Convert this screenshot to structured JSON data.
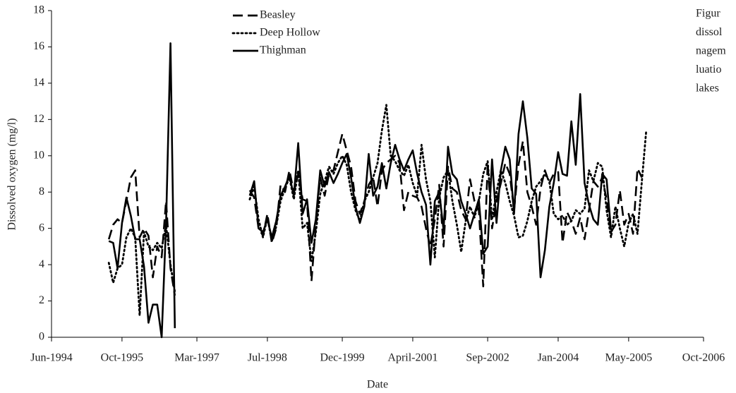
{
  "chart_data": {
    "type": "line",
    "x_label": "Date",
    "y_label": "Dissolved oxygen (mg/l)",
    "caption_fragments": [
      "Figur",
      "dissol",
      "nagem",
      "luatio",
      "lakes"
    ],
    "legend": "top-center",
    "xlim": [
      "1994-06",
      "2006-10"
    ],
    "xticks": [
      {
        "value": "1994-06",
        "label": "Jun-1994"
      },
      {
        "value": "1995-10",
        "label": "Oct-1995"
      },
      {
        "value": "1997-03",
        "label": "Mar-1997"
      },
      {
        "value": "1998-07",
        "label": "Jul-1998"
      },
      {
        "value": "1999-12",
        "label": "Dec-1999"
      },
      {
        "value": "2001-04",
        "label": "April-2001"
      },
      {
        "value": "2002-09",
        "label": "Sep-2002"
      },
      {
        "value": "2004-01",
        "label": "Jan-2004"
      },
      {
        "value": "2005-05",
        "label": "May-2005"
      },
      {
        "value": "2006-10",
        "label": "Oct-2006"
      }
    ],
    "ylim": [
      0,
      18
    ],
    "yticks": [
      0,
      2,
      4,
      6,
      8,
      10,
      12,
      14,
      16,
      18
    ],
    "x": [
      "1995-07",
      "1995-08",
      "1995-09",
      "1995-10",
      "1995-11",
      "1995-12",
      "1996-01",
      "1996-02",
      "1996-03",
      "1996-04",
      "1996-05",
      "1996-06",
      "1996-07",
      "1996-08",
      "1996-09",
      "1996-10",
      "1997-06",
      "1998-03",
      "1998-04",
      "1998-05",
      "1998-06",
      "1998-07",
      "1998-08",
      "1998-09",
      "1998-10",
      "1998-11",
      "1998-12",
      "1999-01",
      "1999-02",
      "1999-03",
      "1999-04",
      "1999-05",
      "1999-06",
      "1999-07",
      "1999-08",
      "1999-09",
      "1999-10",
      "1999-11",
      "1999-12",
      "2000-01",
      "2000-02",
      "2000-03",
      "2000-04",
      "2000-05",
      "2000-06",
      "2000-07",
      "2000-08",
      "2000-09",
      "2000-10",
      "2000-11",
      "2000-12",
      "2001-01",
      "2001-02",
      "2001-03",
      "2001-04",
      "2001-05",
      "2001-06",
      "2001-07",
      "2001-08",
      "2001-09",
      "2001-10",
      "2001-11",
      "2001-12",
      "2002-01",
      "2002-02",
      "2002-03",
      "2002-04",
      "2002-05",
      "2002-06",
      "2002-07",
      "2002-08",
      "2002-09",
      "2002-10",
      "2002-11",
      "2002-12",
      "2003-01",
      "2003-02",
      "2003-03",
      "2003-04",
      "2003-05",
      "2003-06",
      "2003-07",
      "2003-08",
      "2003-09",
      "2003-10",
      "2003-11",
      "2003-12",
      "2004-01",
      "2004-02",
      "2004-03",
      "2004-04",
      "2004-05",
      "2004-06",
      "2004-07",
      "2004-08",
      "2004-09",
      "2004-10",
      "2004-11",
      "2004-12",
      "2005-01",
      "2005-02",
      "2005-03",
      "2005-04",
      "2005-05",
      "2005-06",
      "2005-07",
      "2005-08",
      "2005-09"
    ],
    "series": [
      {
        "name": "Beasley",
        "color": "#000000",
        "dash": "dashed",
        "values": [
          5.4,
          6.2,
          6.5,
          6.3,
          7.5,
          8.8,
          9.2,
          5.5,
          6.0,
          5.6,
          3.3,
          5.0,
          4.4,
          7.5,
          3.8,
          2.3,
          null,
          8.1,
          7.7,
          6.0,
          5.6,
          6.8,
          5.2,
          6.0,
          8.4,
          8.0,
          9.2,
          8.0,
          9.0,
          7.6,
          7.5,
          3.1,
          6.2,
          8.8,
          7.8,
          9.0,
          9.2,
          10.2,
          11.2,
          10.3,
          9.4,
          7.5,
          6.8,
          7.5,
          8.4,
          8.8,
          7.2,
          9.2,
          9.6,
          9.8,
          10.0,
          9.6,
          7.0,
          8.0,
          7.8,
          7.7,
          7.2,
          6.0,
          5.0,
          6.5,
          8.4,
          5.0,
          9.4,
          8.2,
          8.0,
          7.0,
          6.5,
          8.7,
          7.5,
          7.0,
          2.8,
          9.6,
          6.0,
          7.5,
          8.5,
          9.6,
          9.0,
          7.0,
          9.5,
          10.8,
          8.0,
          7.2,
          6.2,
          8.2,
          9.2,
          8.5,
          9.0,
          9.1,
          5.2,
          6.9,
          6.4,
          5.7,
          6.6,
          5.4,
          7.0,
          8.6,
          8.3,
          8.8,
          7.6,
          5.8,
          6.2,
          8.1,
          6.2,
          6.8,
          5.7,
          9.3,
          8.8,
          null
        ]
      },
      {
        "name": "Deep Hollow",
        "color": "#000000",
        "dash": "dotted",
        "values": [
          4.1,
          3.0,
          3.8,
          4.0,
          5.5,
          6.0,
          5.5,
          1.2,
          5.8,
          5.0,
          4.8,
          5.2,
          4.9,
          6.2,
          4.0,
          2.5,
          null,
          7.6,
          8.3,
          6.5,
          5.5,
          6.6,
          5.3,
          6.1,
          7.5,
          8.2,
          8.8,
          7.6,
          9.2,
          6.0,
          6.3,
          4.2,
          5.8,
          7.9,
          8.6,
          9.4,
          9.0,
          9.6,
          10.0,
          9.5,
          8.0,
          7.0,
          6.4,
          7.5,
          8.0,
          8.8,
          9.6,
          11.4,
          12.8,
          10.0,
          9.7,
          9.2,
          8.9,
          9.5,
          8.5,
          7.8,
          10.6,
          8.7,
          7.5,
          4.4,
          7.7,
          8.8,
          9.2,
          7.5,
          6.2,
          4.7,
          6.4,
          7.2,
          6.6,
          7.5,
          9.0,
          9.7,
          6.5,
          8.0,
          9.2,
          8.5,
          7.5,
          6.7,
          5.5,
          5.6,
          6.4,
          7.5,
          8.3,
          8.6,
          9.0,
          8.6,
          6.8,
          6.5,
          6.7,
          6.2,
          6.4,
          7.0,
          6.8,
          7.1,
          9.2,
          8.6,
          9.6,
          9.4,
          7.0,
          5.5,
          7.2,
          6.0,
          5.0,
          6.3,
          6.8,
          5.7,
          8.6,
          11.4
        ]
      },
      {
        "name": "Thighman",
        "color": "#000000",
        "dash": "solid",
        "values": [
          5.3,
          5.2,
          3.8,
          6.3,
          7.7,
          6.7,
          5.4,
          5.4,
          3.9,
          0.8,
          1.8,
          1.8,
          0,
          6.2,
          16.2,
          0.5,
          null,
          7.8,
          8.6,
          6.0,
          5.8,
          6.5,
          5.5,
          6.4,
          7.8,
          8.3,
          8.9,
          7.8,
          10.7,
          6.8,
          7.6,
          5.2,
          6.5,
          9.2,
          8.3,
          9.1,
          8.5,
          9.0,
          9.6,
          10.1,
          8.8,
          7.2,
          6.3,
          7.2,
          10.1,
          7.8,
          8.3,
          9.6,
          8.2,
          9.6,
          10.6,
          9.8,
          9.2,
          9.8,
          10.3,
          9.0,
          8.0,
          7.3,
          4.0,
          7.5,
          8.0,
          5.9,
          10.5,
          9.0,
          8.7,
          7.5,
          6.8,
          6.0,
          6.8,
          7.6,
          4.6,
          5.0,
          9.8,
          6.3,
          9.2,
          10.5,
          9.8,
          6.8,
          11.2,
          13.0,
          11.0,
          8.2,
          7.9,
          3.3,
          4.8,
          7.2,
          8.5,
          10.2,
          9.0,
          8.9,
          11.9,
          9.5,
          13.4,
          8.5,
          7.3,
          6.5,
          6.2,
          9.0,
          8.7,
          5.9,
          null,
          null,
          null,
          null,
          null,
          null,
          null,
          null
        ]
      }
    ]
  }
}
